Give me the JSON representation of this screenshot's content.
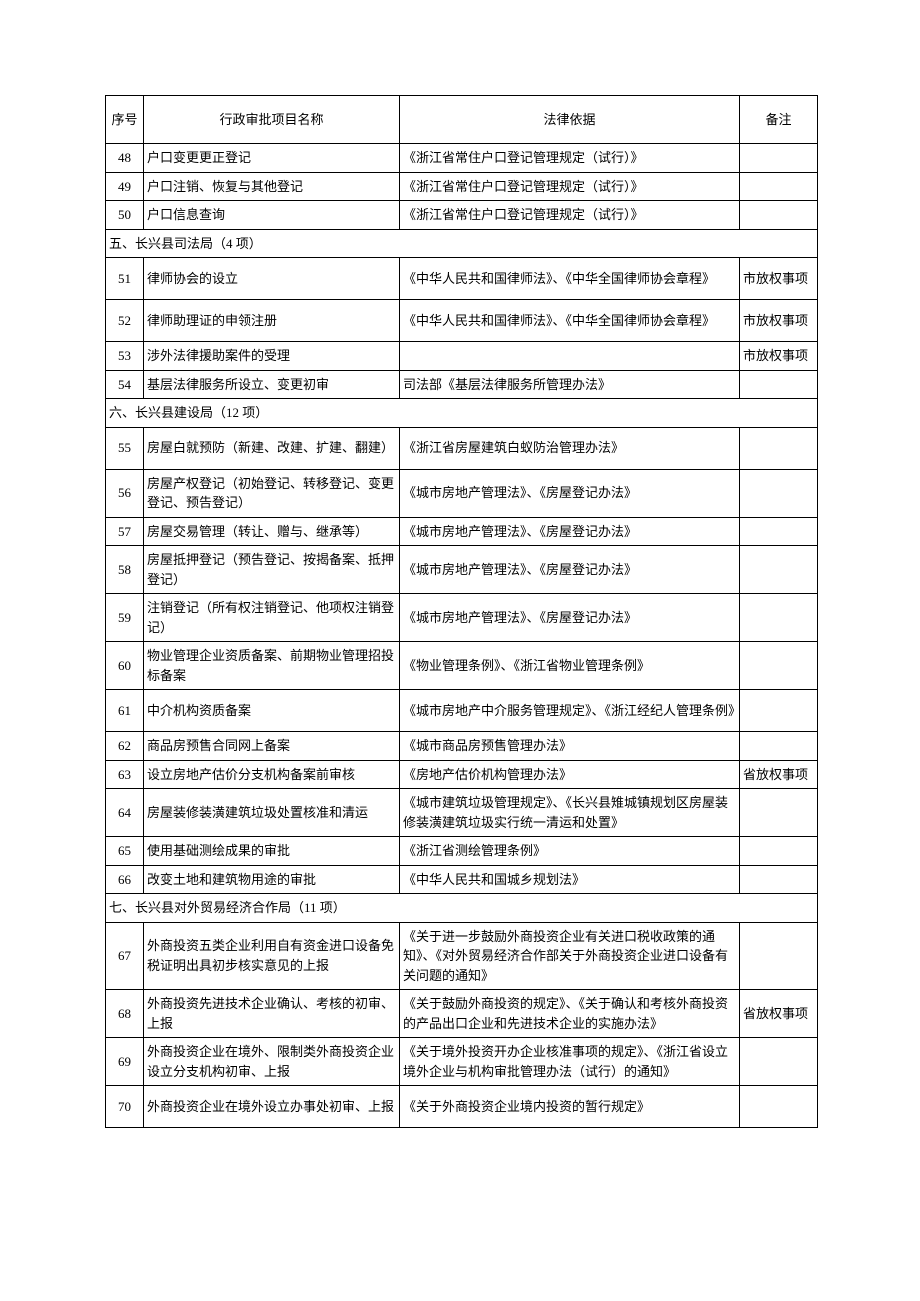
{
  "headers": {
    "seq": "序号",
    "name": "行政审批项目名称",
    "basis": "法律依据",
    "remark": "备注"
  },
  "sections": [
    {
      "rows": [
        {
          "seq": "48",
          "name": "户口变更更正登记",
          "basis": "《浙江省常住户口登记管理规定（试行）》",
          "remark": ""
        },
        {
          "seq": "49",
          "name": "户口注销、恢复与其他登记",
          "basis": "《浙江省常住户口登记管理规定（试行）》",
          "remark": ""
        },
        {
          "seq": "50",
          "name": "户口信息查询",
          "basis": "《浙江省常住户口登记管理规定（试行）》",
          "remark": ""
        }
      ]
    },
    {
      "title": "五、长兴县司法局（4 项）",
      "rows": [
        {
          "seq": "51",
          "name": "律师协会的设立",
          "basis": "《中华人民共和国律师法》、《中华全国律师协会章程》",
          "remark": "市放权事项",
          "tall": true
        },
        {
          "seq": "52",
          "name": "律师助理证的申领注册",
          "basis": "《中华人民共和国律师法》、《中华全国律师协会章程》",
          "remark": "市放权事项",
          "tall": true
        },
        {
          "seq": "53",
          "name": "涉外法律援助案件的受理",
          "basis": "",
          "remark": "市放权事项"
        },
        {
          "seq": "54",
          "name": "基层法律服务所设立、变更初审",
          "basis": "司法部《基层法律服务所管理办法》",
          "remark": ""
        }
      ]
    },
    {
      "title": "六、长兴县建设局（12 项）",
      "rows": [
        {
          "seq": "55",
          "name": "房屋白就预防（新建、改建、扩建、翻建）",
          "basis": "《浙江省房屋建筑白蚁防治管理办法》",
          "remark": "",
          "tall": true
        },
        {
          "seq": "56",
          "name": "房屋产权登记（初始登记、转移登记、变更登记、预告登记）",
          "basis": "《城市房地产管理法》、《房屋登记办法》",
          "remark": "",
          "tall": true
        },
        {
          "seq": "57",
          "name": "房屋交易管理（转让、赠与、继承等）",
          "basis": "《城市房地产管理法》、《房屋登记办法》",
          "remark": ""
        },
        {
          "seq": "58",
          "name": "房屋抵押登记（预告登记、按揭备案、抵押登记）",
          "basis": "《城市房地产管理法》、《房屋登记办法》",
          "remark": "",
          "tall": true
        },
        {
          "seq": "59",
          "name": "注销登记（所有权注销登记、他项权注销登记）",
          "basis": "《城市房地产管理法》、《房屋登记办法》",
          "remark": "",
          "tall": true
        },
        {
          "seq": "60",
          "name": "物业管理企业资质备案、前期物业管理招投标备案",
          "basis": "《物业管理条例》、《浙江省物业管理条例》",
          "remark": "",
          "tall": true
        },
        {
          "seq": "61",
          "name": "中介机构资质备案",
          "basis": "《城市房地产中介服务管理规定》、《浙江经纪人管理条例》",
          "remark": "",
          "tall": true
        },
        {
          "seq": "62",
          "name": "商品房预售合同网上备案",
          "basis": "《城市商品房预售管理办法》",
          "remark": ""
        },
        {
          "seq": "63",
          "name": "设立房地产估价分支机构备案前审核",
          "basis": "《房地产估价机构管理办法》",
          "remark": "省放权事项"
        },
        {
          "seq": "64",
          "name": "房屋装修装潢建筑垃圾处置核准和清运",
          "basis": "《城市建筑垃圾管理规定》、《长兴县雉城镇规划区房屋装修装潢建筑垃圾实行统一清运和处置》",
          "remark": "",
          "tall": true
        },
        {
          "seq": "65",
          "name": "使用基础测绘成果的审批",
          "basis": "《浙江省测绘管理条例》",
          "remark": ""
        },
        {
          "seq": "66",
          "name": "改变土地和建筑物用途的审批",
          "basis": "《中华人民共和国城乡规划法》",
          "remark": ""
        }
      ]
    },
    {
      "title": "七、长兴县对外贸易经济合作局（11 项）",
      "rows": [
        {
          "seq": "67",
          "name": "外商投资五类企业利用自有资金进口设备免税证明出具初步核实意见的上报",
          "basis": "《关于进一步鼓励外商投资企业有关进口税收政策的通知》、《对外贸易经济合作部关于外商投资企业进口设备有关问题的通知》",
          "remark": "",
          "tall": true
        },
        {
          "seq": "68",
          "name": "外商投资先进技术企业确认、考核的初审、上报",
          "basis": "《关于鼓励外商投资的规定》、《关于确认和考核外商投资的产品出口企业和先进技术企业的实施办法》",
          "remark": "省放权事项",
          "tall": true
        },
        {
          "seq": "69",
          "name": "外商投资企业在境外、限制类外商投资企业设立分支机构初审、上报",
          "basis": "《关于境外投资开办企业核准事项的规定》、《浙江省设立境外企业与机构审批管理办法（试行）的通知》",
          "remark": "",
          "tall": true
        },
        {
          "seq": "70",
          "name": "外商投资企业在境外设立办事处初审、上报",
          "basis": "《关于外商投资企业境内投资的暂行规定》",
          "remark": "",
          "tall": true
        }
      ]
    }
  ]
}
